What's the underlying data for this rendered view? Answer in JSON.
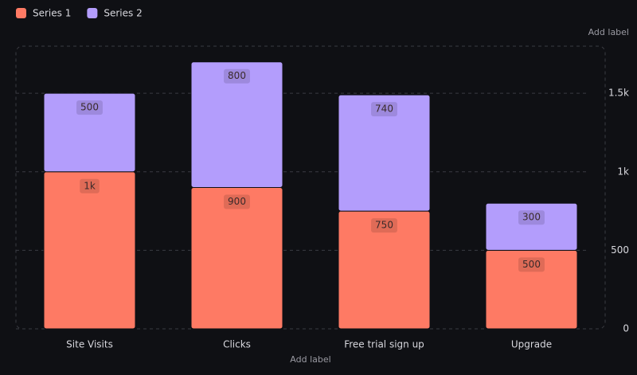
{
  "chart_data": {
    "type": "stacked-bar",
    "x_label": "Add label",
    "y_label": "Add label",
    "categories": [
      "Site Visits",
      "Clicks",
      "Free trial sign up",
      "Upgrade"
    ],
    "series": [
      {
        "name": "Series 1",
        "color": "#fe7a64",
        "values": [
          1000,
          900,
          750,
          500
        ],
        "value_labels": [
          "1k",
          "900",
          "750",
          "500"
        ]
      },
      {
        "name": "Series 2",
        "color": "#b39dfc",
        "values": [
          500,
          800,
          740,
          300
        ]
      }
    ],
    "ylim": [
      0,
      1800
    ],
    "yticks": [
      0,
      500,
      {
        "value": 1000,
        "label": "1k"
      },
      {
        "value": 1500,
        "label": "1.5k"
      }
    ],
    "grid": true
  }
}
